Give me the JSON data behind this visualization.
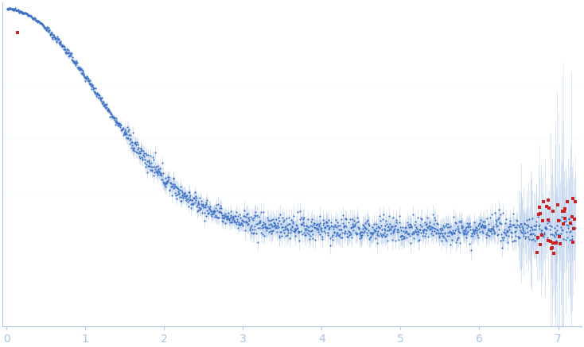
{
  "bg_color": "#ffffff",
  "data_color": "#3a6fc4",
  "error_color": "#aac4e8",
  "outlier_color": "#cc2222",
  "spine_color": "#aac4e8",
  "tick_color": "#aac4e8",
  "n_points": 1500,
  "q_min": 0.005,
  "q_max": 7.22,
  "I0": 1.0,
  "Rg": 1.05,
  "flat_level": 0.09,
  "x_tick_positions": [
    0,
    1,
    2,
    3,
    4,
    5,
    6,
    7
  ],
  "x_tick_labels": [
    "0",
    "1",
    "2",
    "3",
    "4",
    "5",
    "6",
    "7"
  ],
  "xlim": [
    -0.05,
    7.3
  ],
  "ylim": [
    -0.35,
    1.12
  ]
}
